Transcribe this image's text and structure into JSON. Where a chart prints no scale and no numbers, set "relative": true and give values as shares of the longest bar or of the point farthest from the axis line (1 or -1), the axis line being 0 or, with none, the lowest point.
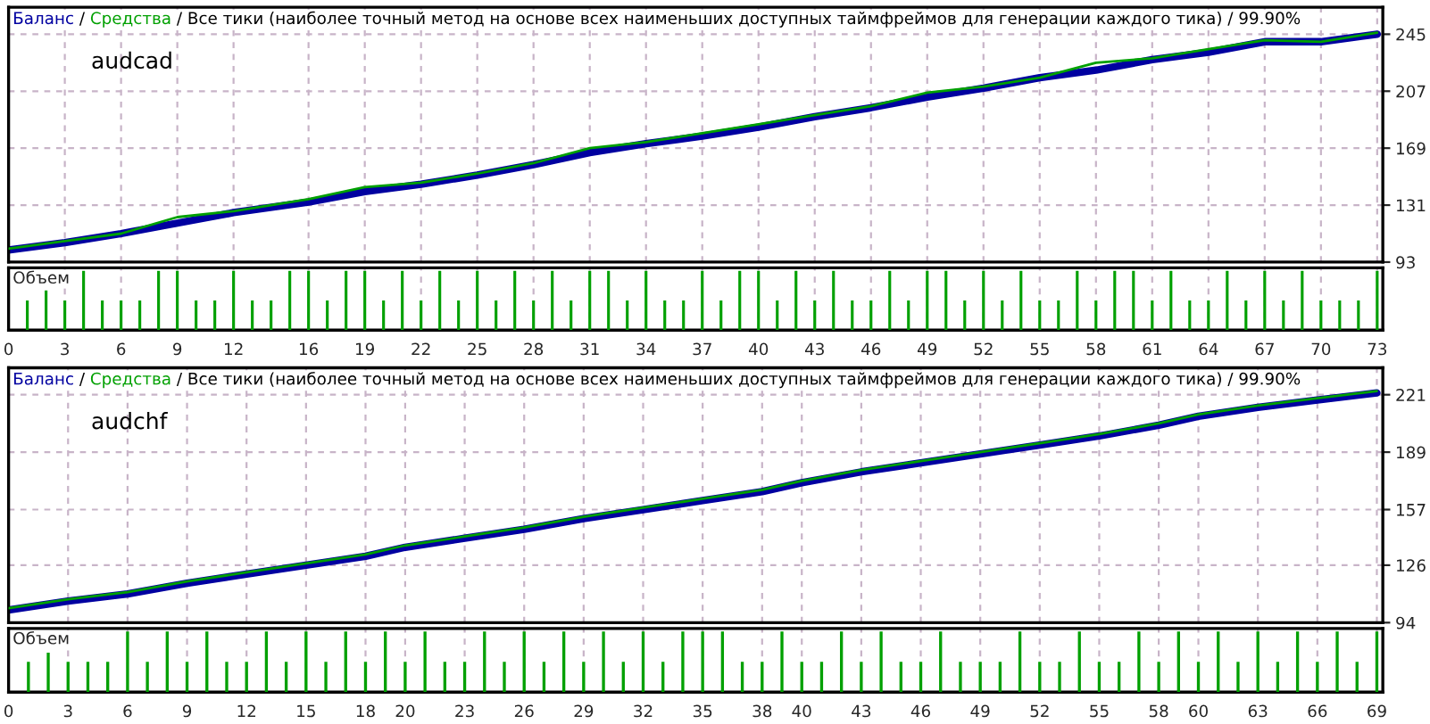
{
  "chart_data": [
    {
      "type": "line",
      "title": "/ Все тики (наиболее точный метод на основе всех наименьших доступных таймфреймов для генерации каждого тика) / 99.90%",
      "annotations": [
        "/",
        "audcad"
      ],
      "legend": "top left",
      "grid": true,
      "tick_labels": "y",
      "line_style": "solid",
      "x": [
        0,
        3,
        6,
        9,
        12,
        16,
        19,
        22,
        25,
        28,
        31,
        34,
        37,
        40,
        43,
        46,
        49,
        52,
        55,
        58,
        61,
        64,
        67,
        70,
        73
      ],
      "xlim": [
        0,
        73.3
      ],
      "ylim": [
        93,
        263
      ],
      "yticks": [
        93,
        131,
        169,
        207,
        245
      ],
      "series": [
        {
          "name": "Баланс",
          "color": "#0000a0",
          "values": [
            101,
            106,
            112,
            119,
            126,
            133,
            140,
            145,
            151,
            158,
            166,
            172,
            177,
            183,
            190,
            196,
            203,
            209,
            216,
            221,
            228,
            233,
            240,
            240,
            245
          ]
        },
        {
          "name": "Средства",
          "color": "#00a000",
          "values": [
            102,
            107,
            112,
            123,
            127,
            135,
            143,
            146,
            152,
            159,
            169,
            173,
            179,
            185,
            191,
            197,
            206,
            210,
            216,
            226,
            229,
            235,
            241,
            240,
            246
          ]
        }
      ]
    },
    {
      "type": "bar",
      "relative": true,
      "annotations": [
        "Объем"
      ],
      "grid": "x",
      "tick_labels": "x",
      "color": "#00a000",
      "x": [
        1,
        2,
        3,
        4,
        5,
        6,
        7,
        8,
        9,
        10,
        11,
        12,
        13,
        14,
        15,
        16,
        17,
        18,
        19,
        20,
        21,
        22,
        23,
        24,
        25,
        26,
        27,
        28,
        29,
        30,
        31,
        32,
        33,
        34,
        35,
        36,
        37,
        38,
        39,
        40,
        41,
        42,
        43,
        44,
        45,
        46,
        47,
        48,
        49,
        50,
        51,
        52,
        53,
        54,
        55,
        56,
        57,
        58,
        59,
        60,
        61,
        62,
        63,
        64,
        65,
        66,
        67,
        68,
        69,
        70,
        71,
        72,
        73
      ],
      "values": [
        0.5,
        0.67,
        0.5,
        1,
        0.5,
        0.5,
        0.5,
        1,
        1,
        0.5,
        0.5,
        1,
        0.5,
        0.5,
        1,
        1,
        0.5,
        1,
        1,
        0.5,
        1,
        0.5,
        1,
        0.5,
        1,
        0.5,
        1,
        0.5,
        1,
        0.5,
        1,
        1,
        0.5,
        1,
        0.5,
        0.5,
        1,
        0.5,
        1,
        1,
        0.5,
        1,
        0.5,
        1,
        0.5,
        0.5,
        1,
        0.5,
        1,
        1,
        0.5,
        1,
        0.5,
        1,
        0.5,
        0.5,
        1,
        0.5,
        1,
        1,
        0.5,
        1,
        0.5,
        0.5,
        1,
        0.5,
        1,
        0.5,
        1,
        0.5,
        0.5,
        0.5,
        1
      ],
      "xlim": [
        0,
        73.3
      ],
      "xticks": [
        0,
        3,
        6,
        9,
        12,
        16,
        19,
        22,
        25,
        28,
        31,
        34,
        37,
        40,
        43,
        46,
        49,
        52,
        55,
        58,
        61,
        64,
        67,
        70,
        73
      ]
    },
    {
      "type": "line",
      "title": "/ Все тики (наиболее точный метод на основе всех наименьших доступных таймфреймов для генерации каждого тика) / 99.90%",
      "annotations": [
        "/",
        "audchf"
      ],
      "legend": "top left",
      "grid": true,
      "tick_labels": "y",
      "line_style": "solid",
      "x": [
        0,
        3,
        6,
        9,
        12,
        15,
        18,
        20,
        23,
        26,
        29,
        32,
        35,
        38,
        40,
        43,
        46,
        49,
        52,
        55,
        58,
        60,
        63,
        66,
        69
      ],
      "xlim": [
        0,
        69.3
      ],
      "ylim": [
        94,
        236
      ],
      "yticks": [
        94,
        126,
        157,
        189,
        221
      ],
      "series": [
        {
          "name": "Баланс",
          "color": "#0000a0",
          "values": [
            101,
            106,
            110,
            116,
            121,
            126,
            131,
            136,
            141,
            146,
            152,
            157,
            162,
            167,
            172,
            178,
            183,
            188,
            193,
            198,
            204,
            209,
            214,
            218,
            222
          ]
        },
        {
          "name": "Средства",
          "color": "#00a000",
          "values": [
            102,
            107,
            111,
            117,
            122,
            127,
            132,
            137,
            142,
            147,
            153,
            158,
            163,
            168,
            173,
            179,
            184,
            189,
            194,
            199,
            205,
            210,
            215,
            219,
            223
          ]
        }
      ]
    },
    {
      "type": "bar",
      "relative": true,
      "annotations": [
        "Объем"
      ],
      "grid": "x",
      "tick_labels": "x",
      "color": "#00a000",
      "x": [
        1,
        2,
        3,
        4,
        5,
        6,
        7,
        8,
        9,
        10,
        11,
        12,
        13,
        14,
        15,
        16,
        17,
        18,
        19,
        20,
        21,
        22,
        23,
        24,
        25,
        26,
        27,
        28,
        29,
        30,
        31,
        32,
        33,
        34,
        35,
        36,
        37,
        38,
        39,
        40,
        41,
        42,
        43,
        44,
        45,
        46,
        47,
        48,
        49,
        50,
        51,
        52,
        53,
        54,
        55,
        56,
        57,
        58,
        59,
        60,
        61,
        62,
        63,
        64,
        65,
        66,
        67,
        68,
        69
      ],
      "values": [
        0.5,
        0.65,
        0.5,
        0.5,
        0.5,
        1,
        0.5,
        1,
        0.5,
        1,
        0.5,
        0.5,
        1,
        0.5,
        1,
        0.5,
        1,
        0.5,
        1,
        0.5,
        1,
        0.5,
        0.5,
        1,
        0.5,
        1,
        0.5,
        1,
        0.5,
        1,
        0.5,
        1,
        0.5,
        1,
        1,
        1,
        0.5,
        0.5,
        1,
        0.5,
        0.5,
        1,
        0.5,
        1,
        0.5,
        0.5,
        1,
        0.5,
        0.5,
        0.5,
        1,
        0.5,
        0.5,
        1,
        0.5,
        0.5,
        1,
        0.5,
        1,
        0.5,
        1,
        0.5,
        1,
        0.5,
        1,
        0.5,
        1,
        0.5,
        1
      ],
      "xlim": [
        0,
        69.3
      ],
      "xticks": [
        0,
        3,
        6,
        9,
        12,
        15,
        18,
        20,
        23,
        26,
        29,
        32,
        35,
        38,
        40,
        43,
        46,
        49,
        52,
        55,
        58,
        60,
        63,
        66,
        69
      ]
    }
  ]
}
